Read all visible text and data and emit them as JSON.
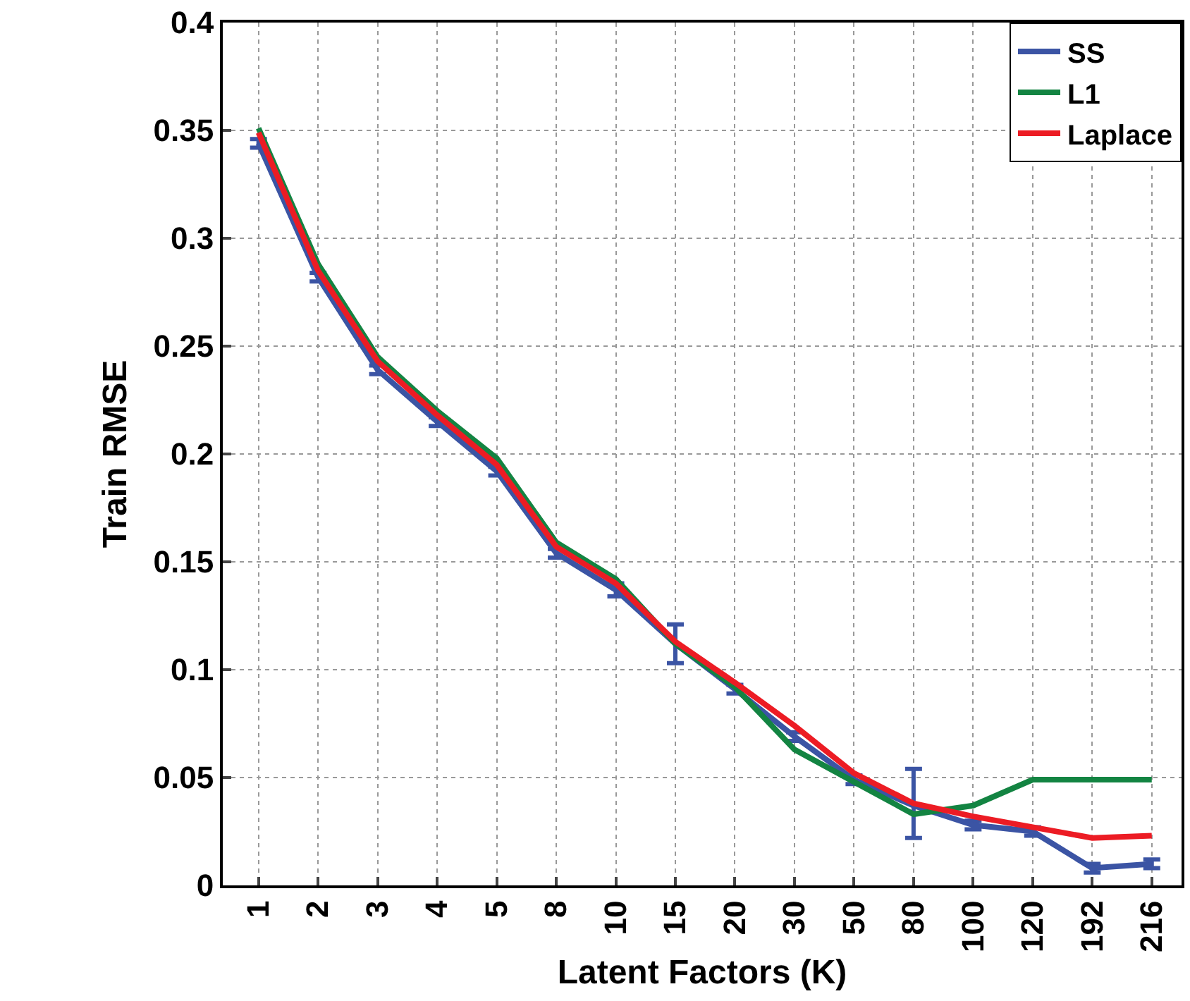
{
  "chart_data": {
    "type": "line",
    "xlabel": "Latent Factors (K)",
    "ylabel": "Train RMSE",
    "categories": [
      "1",
      "2",
      "3",
      "4",
      "5",
      "8",
      "10",
      "15",
      "20",
      "30",
      "50",
      "80",
      "100",
      "120",
      "192",
      "216"
    ],
    "series": [
      {
        "name": "SS",
        "color": "#3b54a4",
        "values": [
          0.344,
          0.282,
          0.239,
          0.215,
          0.192,
          0.154,
          0.137,
          0.112,
          0.091,
          0.069,
          0.049,
          0.037,
          0.028,
          0.025,
          0.008,
          0.01
        ],
        "errors": [
          0.002,
          0.002,
          0.002,
          0.002,
          0.002,
          0.002,
          0.003,
          [
            0.103,
            0.121
          ],
          0.002,
          0.002,
          0.002,
          [
            0.022,
            0.054
          ],
          0.002,
          0.002,
          0.002,
          0.002
        ]
      },
      {
        "name": "L1",
        "color": "#138442",
        "values": [
          0.351,
          0.288,
          0.245,
          0.22,
          0.198,
          0.159,
          0.142,
          0.112,
          0.092,
          0.063,
          0.048,
          0.033,
          0.037,
          0.049,
          0.049,
          0.049
        ]
      },
      {
        "name": "Laplace",
        "color": "#ec1c24",
        "values": [
          0.349,
          0.285,
          0.243,
          0.218,
          0.195,
          0.157,
          0.14,
          0.113,
          0.094,
          0.074,
          0.052,
          0.038,
          0.032,
          0.027,
          0.022,
          0.023
        ]
      }
    ],
    "ylim": [
      0,
      0.4
    ],
    "yticks": [
      0,
      0.05,
      0.1,
      0.15,
      0.2,
      0.25,
      0.3,
      0.35,
      0.4
    ],
    "grid": true,
    "legend": "top right"
  }
}
